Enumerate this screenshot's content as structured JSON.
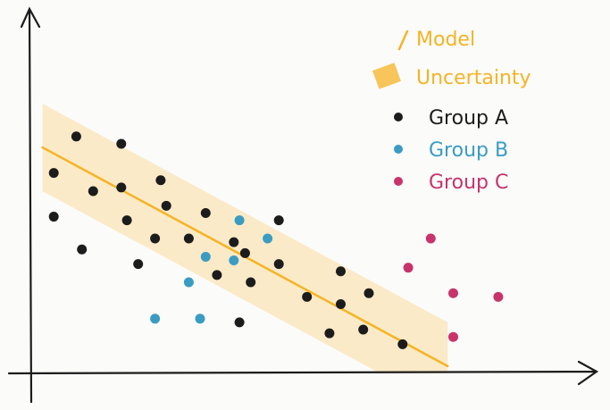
{
  "chart_data": {
    "type": "scatter",
    "xlim": [
      0,
      100
    ],
    "ylim": [
      0,
      100
    ],
    "legend": "upper right",
    "series": [
      {
        "name": "Group A",
        "color": "#1c1c1c",
        "x": [
          8,
          16,
          4,
          11,
          16,
          23,
          4,
          9,
          17,
          24,
          31,
          22,
          28,
          19,
          33,
          36,
          38,
          44,
          39,
          44,
          55,
          49,
          55,
          60,
          53,
          59,
          66,
          37
        ],
        "y": [
          65,
          63,
          55,
          50,
          51,
          53,
          43,
          34,
          42,
          46,
          44,
          37,
          37,
          30,
          27,
          36,
          33,
          42,
          25,
          30,
          28,
          21,
          19,
          22,
          11,
          12,
          8,
          14
        ]
      },
      {
        "name": "Group B",
        "color": "#3a9cc2",
        "x": [
          37,
          42,
          31,
          36,
          28,
          22,
          30
        ],
        "y": [
          42,
          37,
          32,
          31,
          25,
          15,
          15
        ]
      },
      {
        "name": "Group C",
        "color": "#c8336b",
        "x": [
          71,
          67,
          75,
          83,
          75
        ],
        "y": [
          37,
          29,
          22,
          21,
          10
        ]
      }
    ],
    "model": {
      "name": "Model",
      "color": "#f5b324",
      "x": [
        2,
        74
      ],
      "y": [
        62,
        2
      ]
    },
    "uncertainty": {
      "name": "Uncertainty",
      "color": "#fbd58a",
      "x": [
        2,
        74
      ],
      "upper": [
        74,
        14
      ],
      "lower": [
        50,
        -10
      ]
    }
  }
}
